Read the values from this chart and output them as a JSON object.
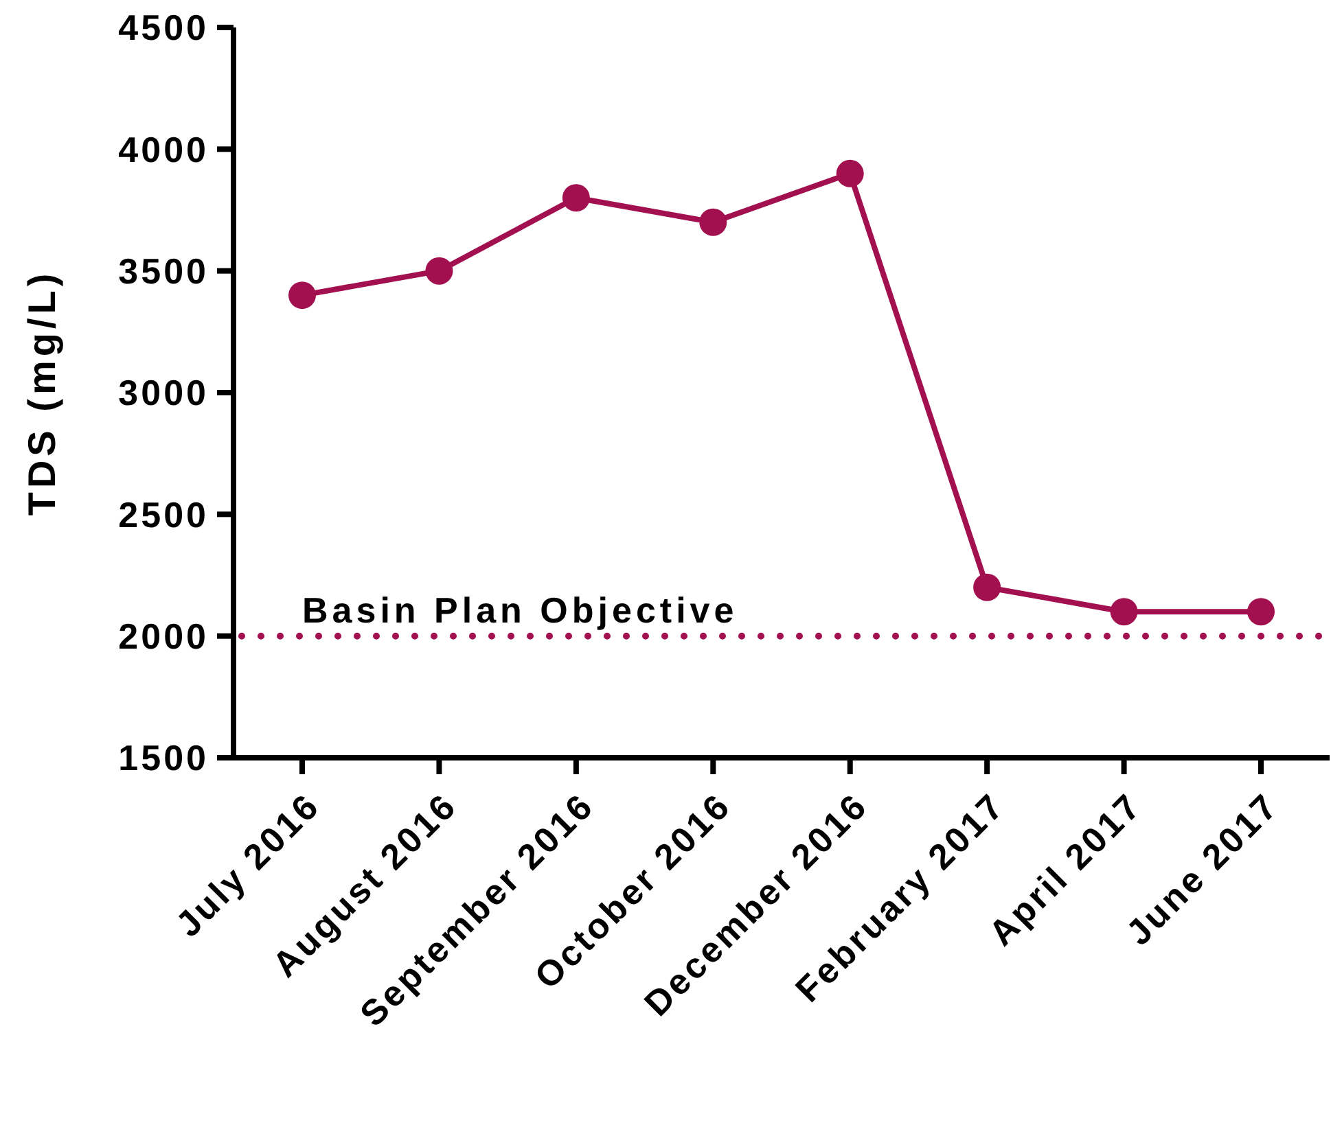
{
  "chart_data": {
    "type": "line",
    "ylabel": "TDS (mg/L)",
    "categories": [
      "July 2016",
      "August 2016",
      "September 2016",
      "October 2016",
      "December 2016",
      "February 2017",
      "April 2017",
      "June 2017"
    ],
    "series": [
      {
        "color": "#a3104f",
        "values": [
          3400,
          3500,
          3800,
          3700,
          3900,
          2200,
          2100,
          2100
        ]
      }
    ],
    "ylim": [
      1500,
      4500
    ],
    "yticks": [
      1500,
      2000,
      2500,
      3000,
      3500,
      4000,
      4500
    ],
    "ref_lines": [
      {
        "axis": "y",
        "value": 2000,
        "label": "Basin Plan Objective",
        "color": "#a3104f",
        "line_style": "dotted"
      }
    ],
    "marker": "circle",
    "line_style": "solid",
    "grid": false
  }
}
